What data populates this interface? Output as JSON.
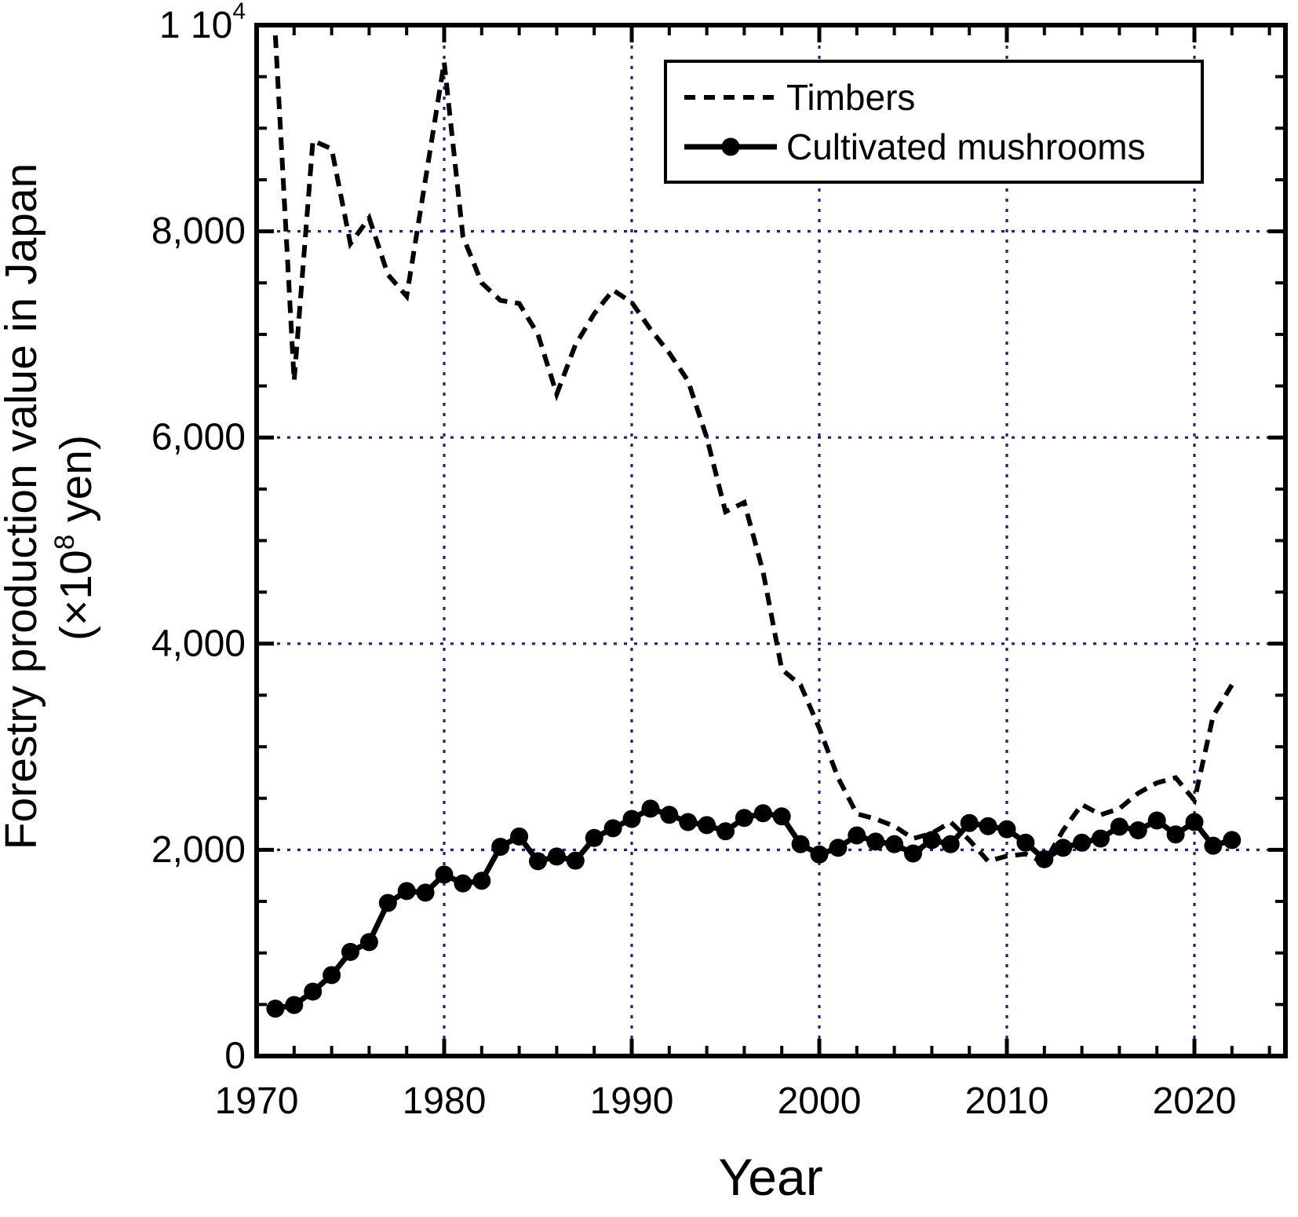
{
  "axes": {
    "x_title": "Year",
    "y_title_line1": "Forestry production value in Japan",
    "y_title_unit": "(×10^8 yen)"
  },
  "colors": {
    "line": "#000000",
    "grid": "#1e1e96",
    "background": "#ffffff"
  },
  "legend": {
    "position": "top-right-inside",
    "entries": [
      "Timbers",
      "Cultivated mushrooms"
    ]
  },
  "chart_data": {
    "type": "line",
    "title": "",
    "xlabel": "Year",
    "ylabel": "Forestry production value in Japan (×10^8 yen)",
    "xlim": [
      1970,
      2024.85
    ],
    "ylim": [
      0,
      10000
    ],
    "grid": true,
    "grid_x_years": [
      1980,
      1990,
      2000,
      2010,
      2020
    ],
    "grid_y_values": [
      2000,
      4000,
      6000,
      8000
    ],
    "x_major_tick_step": 10,
    "x_minor_tick_step": 2,
    "y_major_tick_step": 2000,
    "y_minor_tick_step": 500,
    "x_tick_labels": [
      "1970",
      "1980",
      "1990",
      "2000",
      "2010",
      "2020"
    ],
    "y_tick_labels": [
      {
        "value": 0,
        "label": "0"
      },
      {
        "value": 2000,
        "label": "2,000"
      },
      {
        "value": 4000,
        "label": "4,000"
      },
      {
        "value": 6000,
        "label": "6,000"
      },
      {
        "value": 8000,
        "label": "8,000"
      },
      {
        "value": 10000,
        "label": "1 10^4"
      }
    ],
    "years": [
      1971,
      1972,
      1973,
      1974,
      1975,
      1976,
      1977,
      1978,
      1979,
      1980,
      1981,
      1982,
      1983,
      1984,
      1985,
      1986,
      1987,
      1988,
      1989,
      1990,
      1991,
      1992,
      1993,
      1994,
      1995,
      1996,
      1997,
      1998,
      1999,
      2000,
      2001,
      2002,
      2003,
      2004,
      2005,
      2006,
      2007,
      2008,
      2009,
      2010,
      2011,
      2012,
      2013,
      2014,
      2015,
      2016,
      2017,
      2018,
      2019,
      2020,
      2021,
      2022
    ],
    "series": [
      {
        "name": "Timbers",
        "style": "dashed",
        "marker": "none",
        "values": [
          9900,
          6550,
          8880,
          8800,
          7880,
          8130,
          7580,
          7370,
          8500,
          9640,
          7950,
          7500,
          7330,
          7300,
          7000,
          6420,
          6900,
          7200,
          7430,
          7310,
          7050,
          6820,
          6550,
          6000,
          5280,
          5370,
          4700,
          3750,
          3600,
          3180,
          2700,
          2350,
          2300,
          2230,
          2110,
          2160,
          2270,
          2095,
          1890,
          1940,
          1960,
          1875,
          2190,
          2440,
          2340,
          2400,
          2550,
          2650,
          2700,
          2480,
          3300,
          3600
        ]
      },
      {
        "name": "Cultivated mushrooms",
        "style": "solid",
        "marker": "filled-circle",
        "values": [
          460,
          495,
          625,
          785,
          1010,
          1105,
          1485,
          1600,
          1585,
          1760,
          1675,
          1700,
          2030,
          2130,
          1890,
          1935,
          1895,
          2115,
          2210,
          2300,
          2400,
          2340,
          2270,
          2240,
          2180,
          2310,
          2355,
          2325,
          2055,
          1955,
          2020,
          2140,
          2080,
          2055,
          1965,
          2095,
          2055,
          2260,
          2230,
          2200,
          2070,
          1910,
          2020,
          2070,
          2110,
          2225,
          2190,
          2285,
          2150,
          2270,
          2040,
          2095
        ]
      }
    ]
  }
}
